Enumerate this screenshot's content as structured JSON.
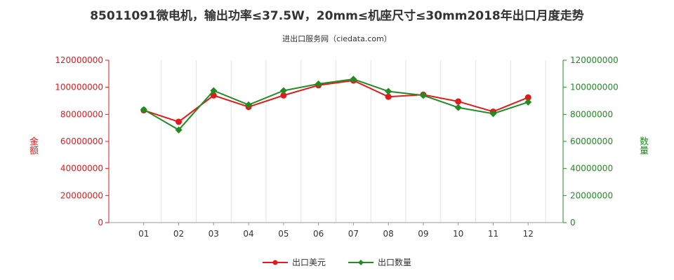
{
  "chart_data": {
    "type": "line",
    "title": "85011091微电机，输出功率≤37.5W，20mm≤机座尺寸≤30mm2018年出口月度走势",
    "subtitle": "进出口服务网（ciedata.com）",
    "categories": [
      "01",
      "02",
      "03",
      "04",
      "05",
      "06",
      "07",
      "08",
      "09",
      "10",
      "11",
      "12"
    ],
    "y_left": {
      "label": "金额",
      "min": 0,
      "max": 120000000,
      "ticks": [
        "0",
        "20000000",
        "40000000",
        "60000000",
        "80000000",
        "100000000",
        "120000000"
      ],
      "color": "#e31a1c"
    },
    "y_right": {
      "label": "数量",
      "min": 0,
      "max": 120000000,
      "ticks": [
        "0",
        "20000000",
        "40000000",
        "60000000",
        "80000000",
        "100000000",
        "120000000"
      ],
      "color": "#228b22"
    },
    "grid": "vertical",
    "legend_position": "bottom",
    "series": [
      {
        "name": "出口美元",
        "axis": "left",
        "color": "#e31a1c",
        "marker": "circle",
        "values": [
          83000000,
          74500000,
          94000000,
          85500000,
          94000000,
          101500000,
          105000000,
          93000000,
          94500000,
          89500000,
          82000000,
          92500000
        ]
      },
      {
        "name": "出口数量",
        "axis": "right",
        "color": "#228b22",
        "marker": "diamond",
        "values": [
          83500000,
          68500000,
          97500000,
          87000000,
          97500000,
          102500000,
          106000000,
          97000000,
          94000000,
          85000000,
          80500000,
          89000000
        ]
      }
    ]
  }
}
